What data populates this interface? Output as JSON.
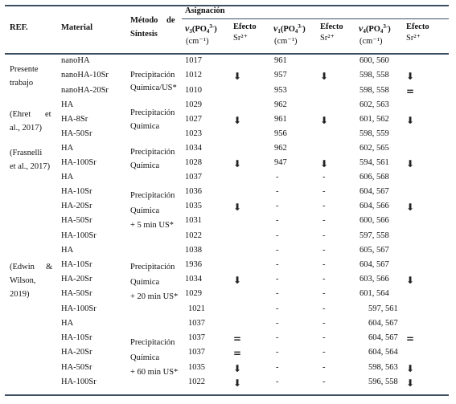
{
  "headers": {
    "ref": "REF.",
    "material": "Material",
    "metodo_line1": "Método",
    "metodo_de": "de",
    "metodo_line2": "Síntesis",
    "asignacion": "Asignación",
    "v3": "v3(PO4³⁻)",
    "v1": "v1(PO4³⁻)",
    "v4": "v4(PO4³⁻)",
    "unit": "(cm⁻¹)",
    "efecto": "Efecto",
    "sr": "Sr²⁺"
  },
  "refs": [
    {
      "lines": [
        "Presente",
        "trabajo"
      ]
    },
    {
      "lines": [
        "(Ehret",
        "et",
        "al., 2017)"
      ]
    },
    {
      "lines": [
        "(Frasnelli",
        "et al., 2017)"
      ]
    },
    {
      "lines": [
        "(Edwin",
        "&",
        "Wilson,",
        "2019)"
      ]
    }
  ],
  "methods": [
    {
      "lines": [
        "Precipitación",
        "Química/US*"
      ]
    },
    {
      "lines": [
        "Precipitación",
        "Química"
      ]
    },
    {
      "lines": [
        "Precipitación",
        "Química"
      ]
    },
    {
      "lines": [
        "Precipitación",
        "Química",
        "+ 5 min US*"
      ]
    },
    {
      "lines": [
        "Precipitación",
        "Química",
        "+ 20 min US*"
      ]
    },
    {
      "lines": [
        "Precipitación",
        "Química",
        "+ 60 min US*"
      ]
    }
  ],
  "rows": [
    {
      "material": "nanoHA",
      "v3": "1017",
      "v1": "961",
      "v4": "600, 560"
    },
    {
      "material": "nanoHA-10Sr",
      "v3": "1012",
      "v1": "957",
      "v4": "598, 558"
    },
    {
      "material": "nanoHA-20Sr",
      "v3": "1010",
      "v1": "953",
      "v4": "598, 558"
    },
    {
      "material": "HA",
      "v3": "1029",
      "v1": "962",
      "v4": "602, 563"
    },
    {
      "material": "HA-8Sr",
      "v3": "1027",
      "v1": "961",
      "v4": "601, 562"
    },
    {
      "material": "HA-50Sr",
      "v3": "1023",
      "v1": "956",
      "v4": "598, 559"
    },
    {
      "material": "HA",
      "v3": "1034",
      "v1": "962",
      "v4": "602, 565"
    },
    {
      "material": "HA-100Sr",
      "v3": "1028",
      "v1": "947",
      "v4": "594, 561"
    },
    {
      "material": "HA",
      "v3": "1037",
      "v1": "-",
      "v4": "606, 568"
    },
    {
      "material": "HA-10Sr",
      "v3": "1036",
      "v1": "-",
      "v4": "604, 567"
    },
    {
      "material": "HA-20Sr",
      "v3": "1035",
      "v1": "-",
      "v4": "604, 566"
    },
    {
      "material": "HA-50Sr",
      "v3": "1031",
      "v1": "-",
      "v4": "600, 566"
    },
    {
      "material": "HA-100Sr",
      "v3": "1022",
      "v1": "-",
      "v4": "597, 558"
    },
    {
      "material": "HA",
      "v3": "1038",
      "v1": "-",
      "v4": "605, 567"
    },
    {
      "material": "HA-10Sr",
      "v3": "1936",
      "v1": "-",
      "v4": "604, 567"
    },
    {
      "material": "HA-20Sr",
      "v3": "1034",
      "v1": "-",
      "v4": "603, 566"
    },
    {
      "material": "HA-50Sr",
      "v3": "1029",
      "v1": "-",
      "v4": "601, 564"
    },
    {
      "material": "HA-100Sr",
      "v3": "1021",
      "v1": "-",
      "v4": "597, 561"
    },
    {
      "material": "HA",
      "v3": "1037",
      "v1": "-",
      "v4": "604, 567"
    },
    {
      "material": "HA-10Sr",
      "v3": "1037",
      "v1": "-",
      "v4": "604, 567"
    },
    {
      "material": "HA-20Sr",
      "v3": "1037",
      "v1": "-",
      "v4": "604, 564"
    },
    {
      "material": "HA-50Sr",
      "v3": "1035",
      "v1": "-",
      "v4": "598, 563"
    },
    {
      "material": "HA-100Sr",
      "v3": "1022",
      "v1": "-",
      "v4": "596, 558"
    }
  ],
  "effect_blank_v1": "-",
  "effect_symbols": {
    "down": "⬇",
    "equal": "="
  },
  "effects": [
    {
      "row": 1,
      "col": "v3",
      "symbol": "down"
    },
    {
      "row": 1,
      "col": "v1",
      "symbol": "down"
    },
    {
      "row": 1,
      "col": "v4",
      "symbol": "down"
    },
    {
      "row": 2,
      "col": "v4",
      "symbol": "equal"
    },
    {
      "row": 4,
      "col": "v3",
      "symbol": "down"
    },
    {
      "row": 4,
      "col": "v1",
      "symbol": "down"
    },
    {
      "row": 4,
      "col": "v4",
      "symbol": "down"
    },
    {
      "row": 7,
      "col": "v3",
      "symbol": "down"
    },
    {
      "row": 7,
      "col": "v1",
      "symbol": "down"
    },
    {
      "row": 7,
      "col": "v4",
      "symbol": "down"
    },
    {
      "row": 10,
      "col": "v3",
      "symbol": "down"
    },
    {
      "row": 10,
      "col": "v4",
      "symbol": "down"
    },
    {
      "row": 15,
      "col": "v3",
      "symbol": "down"
    },
    {
      "row": 15,
      "col": "v4",
      "symbol": "down"
    },
    {
      "row": 19,
      "col": "v3",
      "symbol": "equal"
    },
    {
      "row": 19,
      "col": "v4",
      "symbol": "equal"
    },
    {
      "row": 20,
      "col": "v3",
      "symbol": "equal"
    },
    {
      "row": 21,
      "col": "v3",
      "symbol": "down"
    },
    {
      "row": 21,
      "col": "v4",
      "symbol": "down"
    },
    {
      "row": 22,
      "col": "v3",
      "symbol": "down"
    },
    {
      "row": 22,
      "col": "v4",
      "symbol": "down"
    }
  ]
}
